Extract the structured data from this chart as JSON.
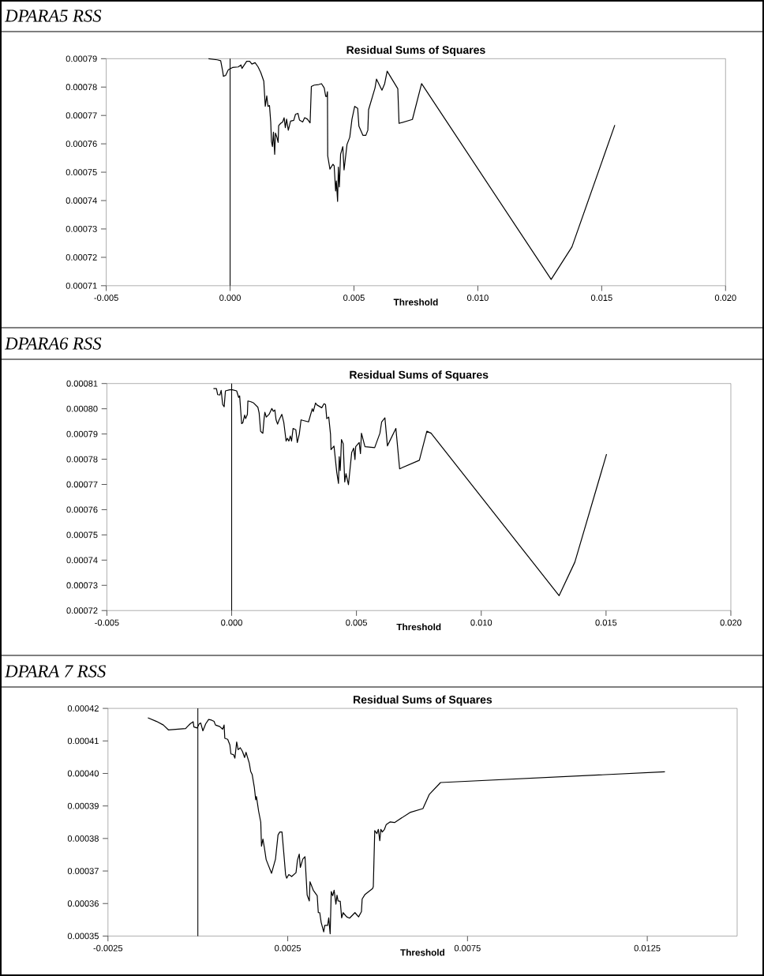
{
  "chart_data": [
    {
      "type": "line",
      "title": "DPARA5 RSS",
      "subtitle": "Residual Sums of Squares",
      "xlabel": "Threshold",
      "color": "#000000",
      "x": [
        -0.00087,
        -0.00052,
        -0.00038,
        -0.0003,
        -0.00027,
        -0.00018,
        -7e-05,
        0.0001,
        0.00033,
        0.00044,
        0.00048,
        0.00067,
        0.00079,
        0.00088,
        0.00101,
        0.00113,
        0.00124,
        0.00136,
        0.00142,
        0.00148,
        0.00153,
        0.00159,
        0.00164,
        0.00167,
        0.00171,
        0.00175,
        0.0018,
        0.00183,
        0.00189,
        0.00194,
        0.00196,
        0.00204,
        0.00212,
        0.00218,
        0.00223,
        0.00228,
        0.00235,
        0.00244,
        0.00257,
        0.00264,
        0.00274,
        0.0028,
        0.00293,
        0.00301,
        0.00312,
        0.00323,
        0.00328,
        0.0034,
        0.00358,
        0.00369,
        0.0038,
        0.00386,
        0.0039,
        0.00393,
        0.00394,
        0.00403,
        0.00415,
        0.0042,
        0.00426,
        0.00429,
        0.00434,
        0.00437,
        0.00441,
        0.00446,
        0.00455,
        0.0046,
        0.00472,
        0.00483,
        0.00492,
        0.00503,
        0.00515,
        0.0052,
        0.00536,
        0.00548,
        0.00556,
        0.00559,
        0.00585,
        0.00591,
        0.00613,
        0.00624,
        0.00634,
        0.00677,
        0.00682,
        0.00736,
        0.00773,
        0.01296,
        0.0138,
        0.01553
      ],
      "values": [
        0.00079,
        0.0007896,
        0.0007893,
        0.0007856,
        0.0007838,
        0.0007841,
        0.0007861,
        0.0007869,
        0.0007871,
        0.0007878,
        0.0007866,
        0.0007891,
        0.0007891,
        0.0007881,
        0.0007886,
        0.0007871,
        0.0007851,
        0.0007821,
        0.0007732,
        0.0007769,
        0.0007732,
        0.0007735,
        0.0007677,
        0.0007608,
        0.000759,
        0.0007641,
        0.0007563,
        0.0007638,
        0.0007623,
        0.0007605,
        0.0007664,
        0.0007672,
        0.0007677,
        0.0007692,
        0.0007657,
        0.0007687,
        0.0007648,
        0.000768,
        0.0007683,
        0.0007704,
        0.0007707,
        0.0007684,
        0.0007677,
        0.0007692,
        0.0007687,
        0.0007674,
        0.0007802,
        0.0007807,
        0.0007809,
        0.0007812,
        0.0007797,
        0.0007767,
        0.0007767,
        0.0007784,
        0.0007558,
        0.0007511,
        0.0007528,
        0.0007523,
        0.0007434,
        0.0007469,
        0.0007397,
        0.0007518,
        0.0007448,
        0.0007563,
        0.000759,
        0.0007508,
        0.0007598,
        0.0007623,
        0.0007687,
        0.0007732,
        0.0007725,
        0.0007662,
        0.000763,
        0.000763,
        0.0007648,
        0.000772,
        0.0007797,
        0.0007828,
        0.0007789,
        0.0007812,
        0.0007856,
        0.0007794,
        0.0007672,
        0.0007686,
        0.0007812,
        0.0007122,
        0.0007237,
        0.0007666
      ],
      "xlim": [
        -0.005,
        0.02
      ],
      "ylim": [
        0.00071,
        0.00079
      ],
      "xticks": [
        {
          "value": -0.005,
          "label": "-0.005"
        },
        {
          "value": 0,
          "label": "0.000"
        },
        {
          "value": 0.005,
          "label": "0.005"
        },
        {
          "value": 0.01,
          "label": "0.010"
        },
        {
          "value": 0.015,
          "label": "0.015"
        },
        {
          "value": 0.02,
          "label": "0.020"
        }
      ],
      "yticks": [
        0.00071,
        0.00072,
        0.00073,
        0.00074,
        0.00075,
        0.00076,
        0.00077,
        0.00078,
        0.00079
      ],
      "ref_lines": [
        {
          "axis": "x",
          "value": 0,
          "color": "#000000"
        }
      ]
    },
    {
      "type": "line",
      "title": "DPARA6 RSS",
      "subtitle": "Residual Sums of Squares",
      "xlabel": "Threshold",
      "color": "#000000",
      "x": [
        -0.00073,
        -0.00061,
        -0.00056,
        -0.00047,
        -0.00042,
        -0.00036,
        -0.0003,
        -0.00025,
        -8e-05,
        3e-05,
        0.0002,
        0.00028,
        0.00032,
        0.0004,
        0.00045,
        0.00052,
        0.00056,
        0.00063,
        0.00065,
        0.00077,
        0.00088,
        0.00105,
        0.0011,
        0.00116,
        0.00122,
        0.00125,
        0.0013,
        0.00133,
        0.00139,
        0.0015,
        0.00161,
        0.00167,
        0.00173,
        0.00178,
        0.00184,
        0.0019,
        0.00201,
        0.00209,
        0.00214,
        0.00218,
        0.00223,
        0.00229,
        0.00235,
        0.0024,
        0.00246,
        0.00257,
        0.00263,
        0.00271,
        0.00278,
        0.00308,
        0.00323,
        0.00327,
        0.00336,
        0.00342,
        0.00361,
        0.0037,
        0.00376,
        0.00381,
        0.00389,
        0.00396,
        0.00398,
        0.0041,
        0.00421,
        0.00428,
        0.00431,
        0.00435,
        0.0044,
        0.00447,
        0.00453,
        0.00458,
        0.00468,
        0.00481,
        0.00489,
        0.00494,
        0.00497,
        0.00511,
        0.00516,
        0.0052,
        0.00534,
        0.00573,
        0.00594,
        0.00601,
        0.00614,
        0.00624,
        0.00658,
        0.00673,
        0.00752,
        0.00782,
        0.00799,
        0.01312,
        0.01375,
        0.01502
      ],
      "values": [
        0.000808,
        0.000808,
        0.0008056,
        0.0008055,
        0.0008073,
        0.0008017,
        0.0008008,
        0.0008071,
        0.0008075,
        0.0008075,
        0.0008071,
        0.0008045,
        0.0008051,
        0.0007941,
        0.0007945,
        0.0007975,
        0.0007961,
        0.0007978,
        0.0008031,
        0.0008028,
        0.0008023,
        0.0008006,
        0.0007984,
        0.0007911,
        0.0007905,
        0.0007903,
        0.0007961,
        0.0007986,
        0.0007967,
        0.0007978,
        0.0008001,
        0.000799,
        0.0007995,
        0.0007956,
        0.0007939,
        0.0007956,
        0.0007978,
        0.0007945,
        0.0007905,
        0.0007872,
        0.0007883,
        0.0007872,
        0.0007892,
        0.0007872,
        0.0007922,
        0.0007917,
        0.0007866,
        0.00079,
        0.0007956,
        0.0007948,
        0.0008,
        0.0007989,
        0.0008023,
        0.0008015,
        0.0008004,
        0.000802,
        0.0008017,
        0.0007961,
        0.0007967,
        0.00079,
        0.0007838,
        0.0007852,
        0.0007749,
        0.0007704,
        0.000781,
        0.0007755,
        0.0007878,
        0.0007861,
        0.000771,
        0.0007743,
        0.0007699,
        0.0007827,
        0.0007844,
        0.0007799,
        0.000785,
        0.0007866,
        0.0007822,
        0.0007903,
        0.000785,
        0.0007846,
        0.0007903,
        0.0007948,
        0.0007964,
        0.0007853,
        0.0007922,
        0.0007762,
        0.0007796,
        0.0007911,
        0.0007903,
        0.0007259,
        0.0007392,
        0.000782
      ],
      "xlim": [
        -0.005,
        0.02
      ],
      "ylim": [
        0.00072,
        0.00081
      ],
      "xticks": [
        {
          "value": -0.005,
          "label": "-0.005"
        },
        {
          "value": 0,
          "label": "0.000"
        },
        {
          "value": 0.005,
          "label": "0.005"
        },
        {
          "value": 0.01,
          "label": "0.010"
        },
        {
          "value": 0.015,
          "label": "0.015"
        },
        {
          "value": 0.02,
          "label": "0.020"
        }
      ],
      "yticks": [
        0.00072,
        0.00073,
        0.00074,
        0.00075,
        0.00076,
        0.00077,
        0.00078,
        0.00079,
        {
          "value": 0.0008,
          "label": "0.00080"
        },
        0.00081
      ],
      "ref_lines": [
        {
          "axis": "x",
          "value": 0,
          "color": "#000000"
        }
      ]
    },
    {
      "type": "line",
      "title": "DPARA 7 RSS",
      "subtitle": "Residual Sums of Squares",
      "xlabel": "Threshold",
      "color": "#000000",
      "x": [
        -0.00139,
        -0.00115,
        -0.00096,
        -0.00082,
        -0.00034,
        -0.00029,
        -0.00021,
        -0.00013,
        -0.00011,
        -2e-05,
        4e-05,
        8e-05,
        0.00014,
        0.00022,
        0.0003,
        0.00038,
        0.00045,
        0.00049,
        0.00061,
        0.00069,
        0.00073,
        0.00075,
        0.00083,
        0.00089,
        0.00092,
        0.00099,
        0.00103,
        0.00108,
        0.00112,
        0.00118,
        0.00124,
        0.0013,
        0.00134,
        0.00143,
        0.00147,
        0.00151,
        0.00157,
        0.00161,
        0.00163,
        0.00169,
        0.00175,
        0.00177,
        0.00181,
        0.00185,
        0.0019,
        0.00205,
        0.00216,
        0.00223,
        0.00228,
        0.00234,
        0.00239,
        0.00244,
        0.00247,
        0.00253,
        0.00261,
        0.00273,
        0.00277,
        0.00282,
        0.00285,
        0.00292,
        0.00298,
        0.00304,
        0.0031,
        0.00312,
        0.00321,
        0.00332,
        0.00335,
        0.00339,
        0.00343,
        0.0035,
        0.00353,
        0.00361,
        0.00364,
        0.00368,
        0.00371,
        0.00375,
        0.00379,
        0.00384,
        0.00387,
        0.0039,
        0.00396,
        0.004,
        0.00404,
        0.00414,
        0.00422,
        0.00437,
        0.00447,
        0.00455,
        0.00457,
        0.00465,
        0.00486,
        0.00488,
        0.00492,
        0.00498,
        0.00502,
        0.00506,
        0.00509,
        0.00513,
        0.00519,
        0.00524,
        0.00535,
        0.00547,
        0.0059,
        0.00626,
        0.00644,
        0.00675,
        0.01299
      ],
      "values": [
        0.0004171,
        0.000416,
        0.0004149,
        0.0004134,
        0.0004138,
        0.0004144,
        0.0004153,
        0.0004159,
        0.0004143,
        0.000414,
        0.0004153,
        0.0004155,
        0.0004131,
        0.0004153,
        0.0004166,
        0.0004164,
        0.000416,
        0.0004149,
        0.0004144,
        0.0004136,
        0.0004149,
        0.0004108,
        0.0004105,
        0.0004088,
        0.000406,
        0.0004058,
        0.0004047,
        0.0004097,
        0.0004073,
        0.0004079,
        0.0004068,
        0.0004049,
        0.0004065,
        0.0004032,
        0.0004006,
        0.0003997,
        0.0003958,
        0.0003919,
        0.0003929,
        0.0003884,
        0.000385,
        0.0003776,
        0.0003798,
        0.0003772,
        0.0003735,
        0.0003693,
        0.0003737,
        0.0003811,
        0.000382,
        0.000382,
        0.0003756,
        0.0003689,
        0.0003678,
        0.0003689,
        0.0003683,
        0.0003695,
        0.0003733,
        0.0003752,
        0.0003711,
        0.0003737,
        0.0003744,
        0.0003626,
        0.0003608,
        0.0003667,
        0.0003641,
        0.0003624,
        0.0003572,
        0.0003572,
        0.0003542,
        0.0003513,
        0.0003533,
        0.0003533,
        0.0003556,
        0.0003507,
        0.0003637,
        0.0003624,
        0.0003641,
        0.0003598,
        0.0003626,
        0.0003608,
        0.0003607,
        0.0003556,
        0.0003572,
        0.0003559,
        0.0003555,
        0.0003572,
        0.0003559,
        0.0003575,
        0.0003614,
        0.0003628,
        0.0003646,
        0.0003652,
        0.0003824,
        0.0003815,
        0.0003828,
        0.0003793,
        0.0003828,
        0.000382,
        0.0003828,
        0.0003843,
        0.0003851,
        0.0003849,
        0.000388,
        0.0003892,
        0.0003936,
        0.0003972,
        0.0004005
      ],
      "xlim": [
        -0.0025,
        0.015
      ],
      "ylim": [
        0.00035,
        0.00042
      ],
      "xticks": [
        {
          "value": -0.0025,
          "label": "-0.0025"
        },
        {
          "value": 0.0025,
          "label": "0.0025"
        },
        {
          "value": 0.0075,
          "label": "0.0075"
        },
        {
          "value": 0.0125,
          "label": "0.0125"
        }
      ],
      "yticks": [
        {
          "value": 0.00035,
          "label": "0.00035"
        },
        {
          "value": 0.00036,
          "label": "0.00036"
        },
        {
          "value": 0.00037,
          "label": "0.00037"
        },
        {
          "value": 0.00038,
          "label": "0.00038"
        },
        {
          "value": 0.00039,
          "label": "0.00039"
        },
        {
          "value": 0.0004,
          "label": "0.00040"
        },
        {
          "value": 0.00041,
          "label": "0.00041"
        },
        {
          "value": 0.00042,
          "label": "0.00042"
        }
      ],
      "ref_lines": [
        {
          "axis": "x",
          "value": 0,
          "color": "#000000"
        }
      ]
    }
  ]
}
